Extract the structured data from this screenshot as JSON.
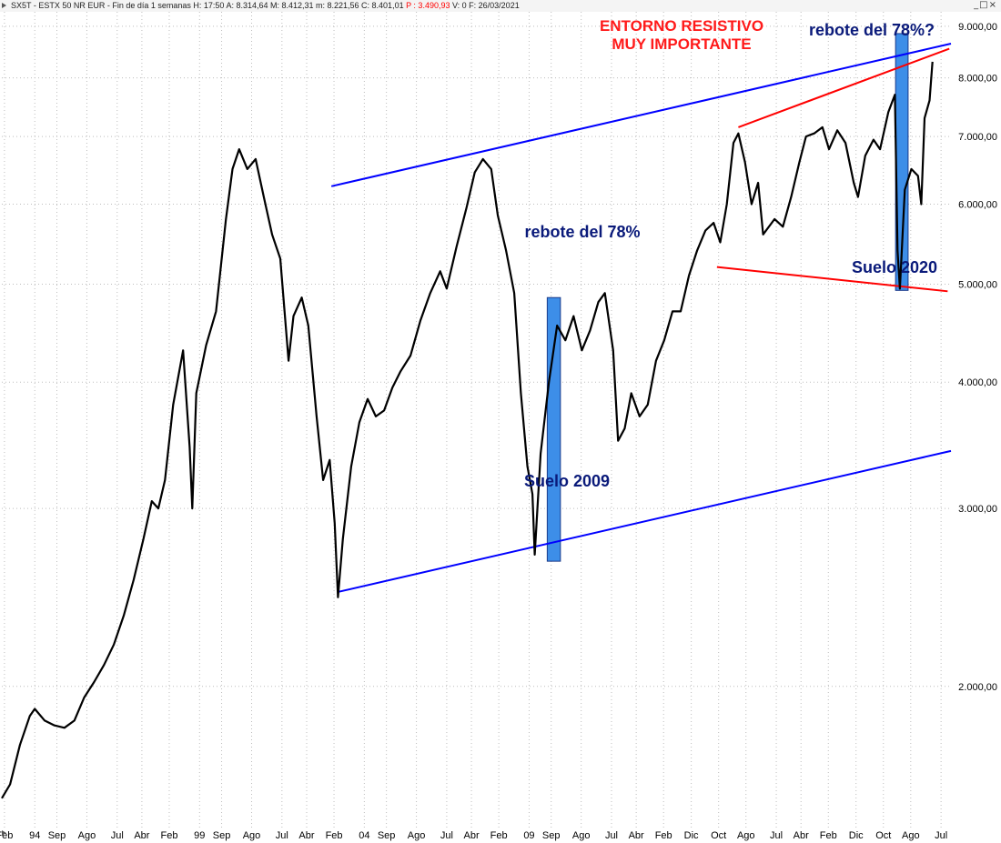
{
  "window": {
    "title_prefix": "SX5T - ESTX 50 NR EUR - Fin de día 1 semanas  H: 17:50  A: 8.314,64  M: 8.412,31  m: 8.221,56  C: 8.401,01",
    "title_p": "P : 3.490,93",
    "title_suffix": "V: 0  F: 26/03/2021",
    "controls": {
      "minimize": "_",
      "maximize": "□",
      "close": "×"
    }
  },
  "chart_data": {
    "type": "line",
    "series_name": "SX5T",
    "scale": "log",
    "ylim": [
      1450,
      9300
    ],
    "y_ticks": [
      {
        "value": 2000,
        "label": "2.000,00"
      },
      {
        "value": 3000,
        "label": "3.000,00"
      },
      {
        "value": 4000,
        "label": "4.000,00"
      },
      {
        "value": 5000,
        "label": "5.000,00"
      },
      {
        "value": 6000,
        "label": "6.000,00"
      },
      {
        "value": 7000,
        "label": "7.000,00"
      },
      {
        "value": 8000,
        "label": "8.000,00"
      },
      {
        "value": 9000,
        "label": "9.000,00"
      }
    ],
    "x_range": [
      1993.0,
      2021.8
    ],
    "x_ticks": [
      {
        "t": 1993.08,
        "label": "Feb"
      },
      {
        "t": 1994.0,
        "label": "94"
      },
      {
        "t": 1994.67,
        "label": "Sep"
      },
      {
        "t": 1995.58,
        "label": "Ago"
      },
      {
        "t": 1996.5,
        "label": "Jul"
      },
      {
        "t": 1997.25,
        "label": "Abr"
      },
      {
        "t": 1998.08,
        "label": "Feb"
      },
      {
        "t": 1999.0,
        "label": "99"
      },
      {
        "t": 1999.67,
        "label": "Sep"
      },
      {
        "t": 2000.58,
        "label": "Ago"
      },
      {
        "t": 2001.5,
        "label": "Jul"
      },
      {
        "t": 2002.25,
        "label": "Abr"
      },
      {
        "t": 2003.08,
        "label": "Feb"
      },
      {
        "t": 2004.0,
        "label": "04"
      },
      {
        "t": 2004.67,
        "label": "Sep"
      },
      {
        "t": 2005.58,
        "label": "Ago"
      },
      {
        "t": 2006.5,
        "label": "Jul"
      },
      {
        "t": 2007.25,
        "label": "Abr"
      },
      {
        "t": 2008.08,
        "label": "Feb"
      },
      {
        "t": 2009.0,
        "label": "09"
      },
      {
        "t": 2009.67,
        "label": "Sep"
      },
      {
        "t": 2010.58,
        "label": "Ago"
      },
      {
        "t": 2011.5,
        "label": "Jul"
      },
      {
        "t": 2012.25,
        "label": "Abr"
      },
      {
        "t": 2013.08,
        "label": "Feb"
      },
      {
        "t": 2013.92,
        "label": "Dic"
      },
      {
        "t": 2014.75,
        "label": "Oct"
      },
      {
        "t": 2015.58,
        "label": "Ago"
      },
      {
        "t": 2016.5,
        "label": "Jul"
      },
      {
        "t": 2017.25,
        "label": "Abr"
      },
      {
        "t": 2018.08,
        "label": "Feb"
      },
      {
        "t": 2018.92,
        "label": "Dic"
      },
      {
        "t": 2019.75,
        "label": "Oct"
      },
      {
        "t": 2020.58,
        "label": "Ago"
      },
      {
        "t": 2021.5,
        "label": "Jul"
      }
    ],
    "series": [
      {
        "t": 1993.0,
        "v": 1550
      },
      {
        "t": 1993.25,
        "v": 1600
      },
      {
        "t": 1993.55,
        "v": 1750
      },
      {
        "t": 1993.85,
        "v": 1870
      },
      {
        "t": 1994.0,
        "v": 1900
      },
      {
        "t": 1994.3,
        "v": 1850
      },
      {
        "t": 1994.6,
        "v": 1830
      },
      {
        "t": 1994.9,
        "v": 1820
      },
      {
        "t": 1995.2,
        "v": 1850
      },
      {
        "t": 1995.5,
        "v": 1950
      },
      {
        "t": 1995.8,
        "v": 2020
      },
      {
        "t": 1996.1,
        "v": 2100
      },
      {
        "t": 1996.4,
        "v": 2200
      },
      {
        "t": 1996.7,
        "v": 2350
      },
      {
        "t": 1997.0,
        "v": 2550
      },
      {
        "t": 1997.3,
        "v": 2800
      },
      {
        "t": 1997.55,
        "v": 3050
      },
      {
        "t": 1997.75,
        "v": 3000
      },
      {
        "t": 1997.95,
        "v": 3200
      },
      {
        "t": 1998.2,
        "v": 3800
      },
      {
        "t": 1998.5,
        "v": 4300
      },
      {
        "t": 1998.7,
        "v": 3450
      },
      {
        "t": 1998.78,
        "v": 3000
      },
      {
        "t": 1998.9,
        "v": 3900
      },
      {
        "t": 1999.2,
        "v": 4350
      },
      {
        "t": 1999.5,
        "v": 4700
      },
      {
        "t": 1999.8,
        "v": 5800
      },
      {
        "t": 2000.0,
        "v": 6500
      },
      {
        "t": 2000.2,
        "v": 6800
      },
      {
        "t": 2000.45,
        "v": 6500
      },
      {
        "t": 2000.7,
        "v": 6650
      },
      {
        "t": 2000.95,
        "v": 6100
      },
      {
        "t": 2001.2,
        "v": 5600
      },
      {
        "t": 2001.45,
        "v": 5300
      },
      {
        "t": 2001.7,
        "v": 4200
      },
      {
        "t": 2001.85,
        "v": 4650
      },
      {
        "t": 2002.1,
        "v": 4850
      },
      {
        "t": 2002.3,
        "v": 4550
      },
      {
        "t": 2002.55,
        "v": 3700
      },
      {
        "t": 2002.75,
        "v": 3200
      },
      {
        "t": 2002.95,
        "v": 3350
      },
      {
        "t": 2003.1,
        "v": 2900
      },
      {
        "t": 2003.2,
        "v": 2450
      },
      {
        "t": 2003.35,
        "v": 2800
      },
      {
        "t": 2003.6,
        "v": 3300
      },
      {
        "t": 2003.85,
        "v": 3650
      },
      {
        "t": 2004.1,
        "v": 3850
      },
      {
        "t": 2004.35,
        "v": 3700
      },
      {
        "t": 2004.6,
        "v": 3750
      },
      {
        "t": 2004.85,
        "v": 3950
      },
      {
        "t": 2005.1,
        "v": 4100
      },
      {
        "t": 2005.4,
        "v": 4250
      },
      {
        "t": 2005.7,
        "v": 4600
      },
      {
        "t": 2006.0,
        "v": 4900
      },
      {
        "t": 2006.3,
        "v": 5150
      },
      {
        "t": 2006.5,
        "v": 4950
      },
      {
        "t": 2006.8,
        "v": 5450
      },
      {
        "t": 2007.1,
        "v": 5950
      },
      {
        "t": 2007.35,
        "v": 6450
      },
      {
        "t": 2007.6,
        "v": 6650
      },
      {
        "t": 2007.85,
        "v": 6500
      },
      {
        "t": 2008.05,
        "v": 5850
      },
      {
        "t": 2008.3,
        "v": 5400
      },
      {
        "t": 2008.55,
        "v": 4900
      },
      {
        "t": 2008.75,
        "v": 3900
      },
      {
        "t": 2008.95,
        "v": 3300
      },
      {
        "t": 2009.1,
        "v": 3100
      },
      {
        "t": 2009.17,
        "v": 2700
      },
      {
        "t": 2009.35,
        "v": 3400
      },
      {
        "t": 2009.6,
        "v": 4000
      },
      {
        "t": 2009.85,
        "v": 4550
      },
      {
        "t": 2010.1,
        "v": 4400
      },
      {
        "t": 2010.35,
        "v": 4650
      },
      {
        "t": 2010.6,
        "v": 4300
      },
      {
        "t": 2010.85,
        "v": 4500
      },
      {
        "t": 2011.1,
        "v": 4800
      },
      {
        "t": 2011.3,
        "v": 4900
      },
      {
        "t": 2011.55,
        "v": 4300
      },
      {
        "t": 2011.7,
        "v": 3500
      },
      {
        "t": 2011.9,
        "v": 3600
      },
      {
        "t": 2012.1,
        "v": 3900
      },
      {
        "t": 2012.35,
        "v": 3700
      },
      {
        "t": 2012.6,
        "v": 3800
      },
      {
        "t": 2012.85,
        "v": 4200
      },
      {
        "t": 2013.1,
        "v": 4400
      },
      {
        "t": 2013.35,
        "v": 4700
      },
      {
        "t": 2013.6,
        "v": 4700
      },
      {
        "t": 2013.85,
        "v": 5100
      },
      {
        "t": 2014.1,
        "v": 5400
      },
      {
        "t": 2014.35,
        "v": 5650
      },
      {
        "t": 2014.6,
        "v": 5750
      },
      {
        "t": 2014.8,
        "v": 5500
      },
      {
        "t": 2015.0,
        "v": 6000
      },
      {
        "t": 2015.2,
        "v": 6900
      },
      {
        "t": 2015.35,
        "v": 7050
      },
      {
        "t": 2015.55,
        "v": 6600
      },
      {
        "t": 2015.75,
        "v": 6000
      },
      {
        "t": 2015.95,
        "v": 6300
      },
      {
        "t": 2016.1,
        "v": 5600
      },
      {
        "t": 2016.45,
        "v": 5800
      },
      {
        "t": 2016.7,
        "v": 5700
      },
      {
        "t": 2016.95,
        "v": 6100
      },
      {
        "t": 2017.2,
        "v": 6600
      },
      {
        "t": 2017.4,
        "v": 7000
      },
      {
        "t": 2017.65,
        "v": 7050
      },
      {
        "t": 2017.9,
        "v": 7150
      },
      {
        "t": 2018.1,
        "v": 6800
      },
      {
        "t": 2018.35,
        "v": 7100
      },
      {
        "t": 2018.6,
        "v": 6900
      },
      {
        "t": 2018.85,
        "v": 6300
      },
      {
        "t": 2018.98,
        "v": 6100
      },
      {
        "t": 2019.2,
        "v": 6700
      },
      {
        "t": 2019.45,
        "v": 6950
      },
      {
        "t": 2019.65,
        "v": 6800
      },
      {
        "t": 2019.9,
        "v": 7400
      },
      {
        "t": 2020.1,
        "v": 7700
      },
      {
        "t": 2020.18,
        "v": 5400
      },
      {
        "t": 2020.25,
        "v": 4950
      },
      {
        "t": 2020.4,
        "v": 6200
      },
      {
        "t": 2020.6,
        "v": 6500
      },
      {
        "t": 2020.8,
        "v": 6400
      },
      {
        "t": 2020.9,
        "v": 6000
      },
      {
        "t": 2021.0,
        "v": 7300
      },
      {
        "t": 2021.15,
        "v": 7600
      },
      {
        "t": 2021.24,
        "v": 8300
      }
    ],
    "lines": [
      {
        "name": "upper-channel",
        "color": "#0000ff",
        "t1": 2003.0,
        "v1": 6250,
        "t2": 2021.8,
        "v2": 8650
      },
      {
        "name": "lower-channel",
        "color": "#0000ff",
        "t1": 2003.2,
        "v1": 2480,
        "t2": 2021.8,
        "v2": 3420
      },
      {
        "name": "resistance-red",
        "color": "#ff0000",
        "t1": 2015.35,
        "v1": 7150,
        "t2": 2021.75,
        "v2": 8550
      },
      {
        "name": "support-red",
        "color": "#ff0000",
        "t1": 2014.7,
        "v1": 5200,
        "t2": 2021.7,
        "v2": 4920
      }
    ],
    "boxes": [
      {
        "name": "rebote-2009-box",
        "color": "#3d8ee8",
        "t1": 2009.55,
        "t2": 2009.95,
        "v1": 2660,
        "v2": 4850
      },
      {
        "name": "rebote-2020-box",
        "color": "#3d8ee8",
        "t1": 2020.12,
        "t2": 2020.5,
        "v1": 4930,
        "v2": 8850
      }
    ],
    "annotations": {
      "entorno_line1": "ENTORNO RESISTIVO",
      "entorno_line2": "MUY IMPORTANTE",
      "rebote_2020": "rebote del 78%?",
      "rebote_2009": "rebote del 78%",
      "suelo_2009": "Suelo 2009",
      "suelo_2020": "Suelo 2020"
    },
    "colors": {
      "annotation_red": "#ff1a1a",
      "annotation_navy": "#0a1a7a",
      "price": "#000000"
    }
  }
}
